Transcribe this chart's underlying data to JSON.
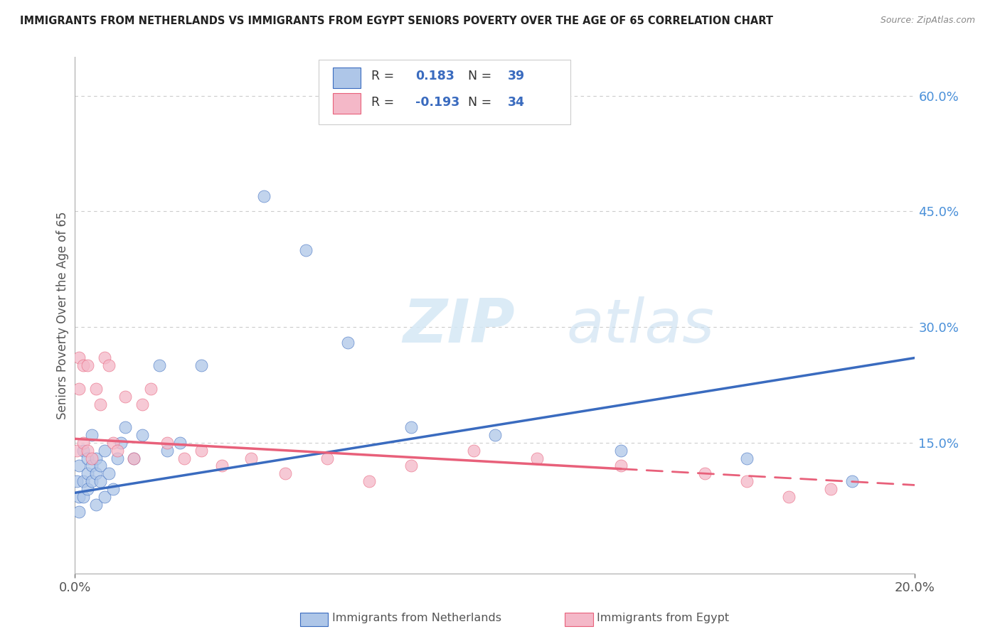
{
  "title": "IMMIGRANTS FROM NETHERLANDS VS IMMIGRANTS FROM EGYPT SENIORS POVERTY OVER THE AGE OF 65 CORRELATION CHART",
  "source": "Source: ZipAtlas.com",
  "ylabel": "Seniors Poverty Over the Age of 65",
  "xlim": [
    0.0,
    0.2
  ],
  "ylim": [
    -0.02,
    0.65
  ],
  "watermark_zip": "ZIP",
  "watermark_atlas": "atlas",
  "netherlands_color": "#aec6e8",
  "egypt_color": "#f4b8c8",
  "netherlands_line_color": "#3a6bbf",
  "egypt_line_color": "#e8607a",
  "netherlands_x": [
    0.0005,
    0.001,
    0.001,
    0.001,
    0.002,
    0.002,
    0.002,
    0.003,
    0.003,
    0.003,
    0.004,
    0.004,
    0.004,
    0.005,
    0.005,
    0.005,
    0.006,
    0.006,
    0.007,
    0.007,
    0.008,
    0.009,
    0.01,
    0.011,
    0.012,
    0.014,
    0.016,
    0.02,
    0.022,
    0.025,
    0.03,
    0.045,
    0.055,
    0.065,
    0.08,
    0.1,
    0.13,
    0.16,
    0.185
  ],
  "netherlands_y": [
    0.1,
    0.12,
    0.08,
    0.06,
    0.1,
    0.14,
    0.08,
    0.11,
    0.13,
    0.09,
    0.12,
    0.1,
    0.16,
    0.11,
    0.07,
    0.13,
    0.1,
    0.12,
    0.14,
    0.08,
    0.11,
    0.09,
    0.13,
    0.15,
    0.17,
    0.13,
    0.16,
    0.25,
    0.14,
    0.15,
    0.25,
    0.47,
    0.4,
    0.28,
    0.17,
    0.16,
    0.14,
    0.13,
    0.1
  ],
  "egypt_x": [
    0.0005,
    0.001,
    0.001,
    0.002,
    0.002,
    0.003,
    0.003,
    0.004,
    0.005,
    0.006,
    0.007,
    0.008,
    0.009,
    0.01,
    0.012,
    0.014,
    0.016,
    0.018,
    0.022,
    0.026,
    0.03,
    0.035,
    0.042,
    0.05,
    0.06,
    0.07,
    0.08,
    0.095,
    0.11,
    0.13,
    0.15,
    0.16,
    0.17,
    0.18
  ],
  "egypt_y": [
    0.14,
    0.22,
    0.26,
    0.15,
    0.25,
    0.14,
    0.25,
    0.13,
    0.22,
    0.2,
    0.26,
    0.25,
    0.15,
    0.14,
    0.21,
    0.13,
    0.2,
    0.22,
    0.15,
    0.13,
    0.14,
    0.12,
    0.13,
    0.11,
    0.13,
    0.1,
    0.12,
    0.14,
    0.13,
    0.12,
    0.11,
    0.1,
    0.08,
    0.09
  ],
  "nl_trendline_x0": 0.0,
  "nl_trendline_y0": 0.085,
  "nl_trendline_x1": 0.2,
  "nl_trendline_y1": 0.26,
  "eg_trendline_x0": 0.0,
  "eg_trendline_y0": 0.155,
  "eg_trendline_x1": 0.2,
  "eg_trendline_y1": 0.095
}
